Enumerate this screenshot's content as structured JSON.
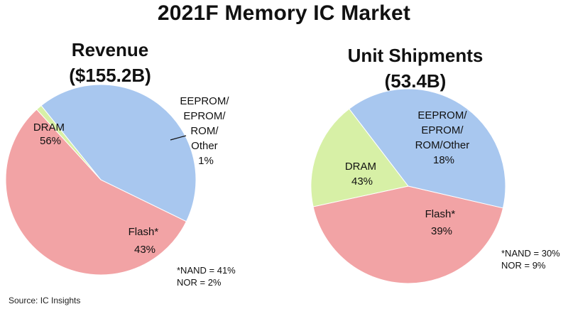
{
  "title": "2021F Memory IC Market",
  "source": "Source:  IC Insights",
  "chart_data": [
    {
      "type": "pie",
      "title_line1": "Revenue",
      "title_line2": "($155.2B)",
      "slices": [
        {
          "label": "DRAM",
          "pct_text": "56%",
          "value": 56,
          "color": "#f2a3a5"
        },
        {
          "label": "EEPROM/EPROM/ROM/Other",
          "label_lines": [
            "EEPROM/",
            "EPROM/",
            "ROM/",
            "Other"
          ],
          "pct_text": "1%",
          "value": 1,
          "color": "#d7f0a6"
        },
        {
          "label": "Flash*",
          "pct_text": "43%",
          "value": 43,
          "color": "#a8c7ef"
        }
      ],
      "note_lines": [
        "*NAND = 41%",
        "NOR = 2%"
      ]
    },
    {
      "type": "pie",
      "title_line1": "Unit Shipments",
      "title_line2": "(53.4B)",
      "slices": [
        {
          "label": "DRAM",
          "pct_text": "43%",
          "value": 43,
          "color": "#f2a3a5"
        },
        {
          "label": "EEPROM/EPROM/ROM/Other",
          "label_lines": [
            "EEPROM/",
            "EPROM/",
            "ROM/Other"
          ],
          "pct_text": "18%",
          "value": 18,
          "color": "#d7f0a6"
        },
        {
          "label": "Flash*",
          "pct_text": "39%",
          "value": 39,
          "color": "#a8c7ef"
        }
      ],
      "note_lines": [
        "*NAND = 30%",
        "NOR = 9%"
      ]
    }
  ]
}
